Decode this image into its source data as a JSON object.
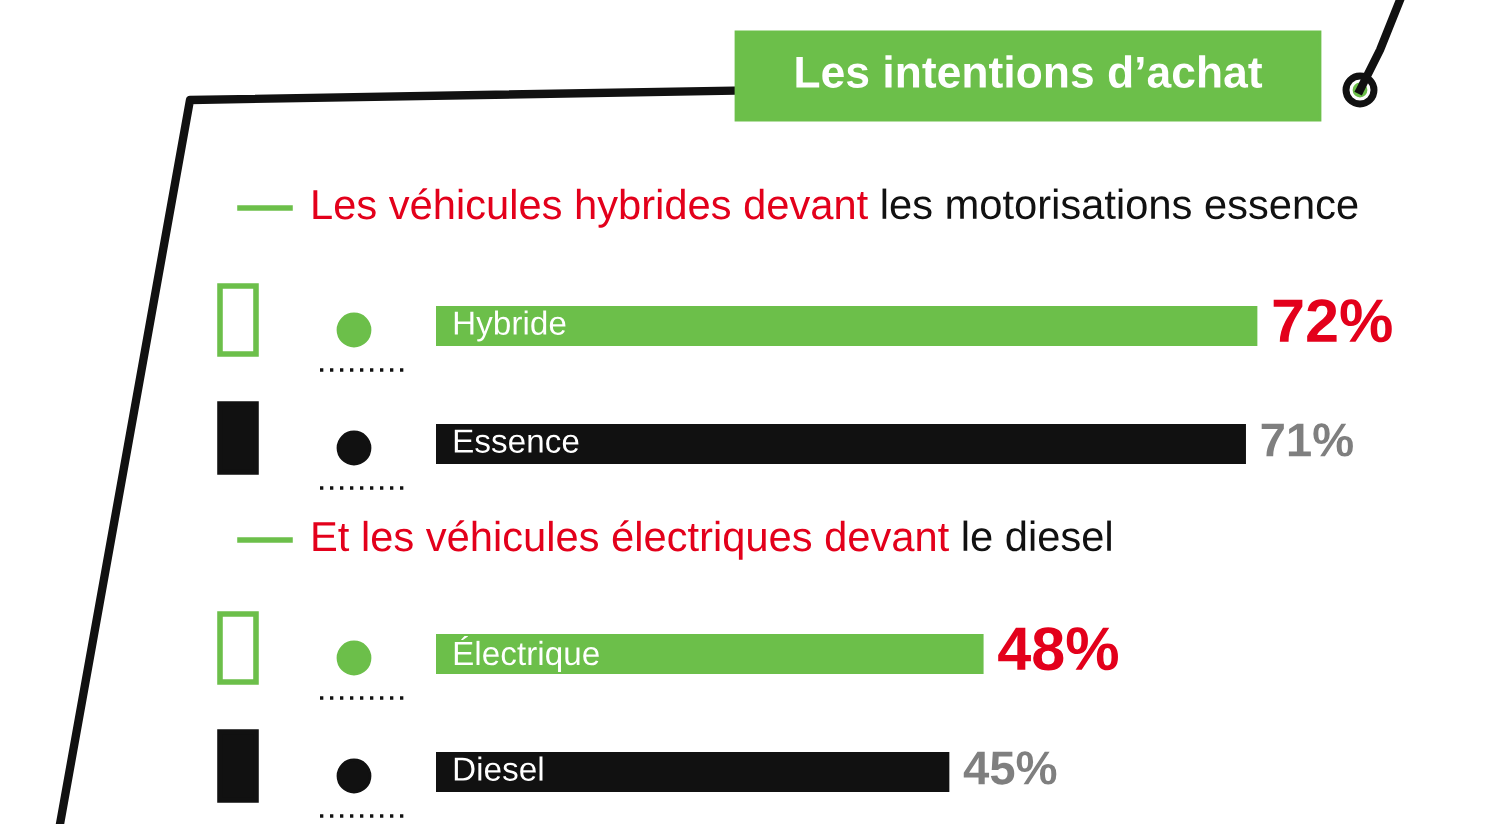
{
  "chart_data": {
    "type": "bar",
    "orientation": "horizontal",
    "title": "Les intentions d’achat",
    "annotations": [
      "Les véhicules hybrides devant",
      "les motorisations essence",
      "Et les véhicules électriques devant",
      "le diesel"
    ],
    "categories": [
      "Hybride",
      "Essence",
      "Électrique",
      "Diesel"
    ],
    "values": [
      72,
      71,
      48,
      45
    ],
    "value_labels": [
      "72%",
      "71%",
      "48%",
      "45%"
    ],
    "colors": [
      "#6cbf4a",
      "#111111",
      "#6cbf4a",
      "#111111"
    ]
  }
}
